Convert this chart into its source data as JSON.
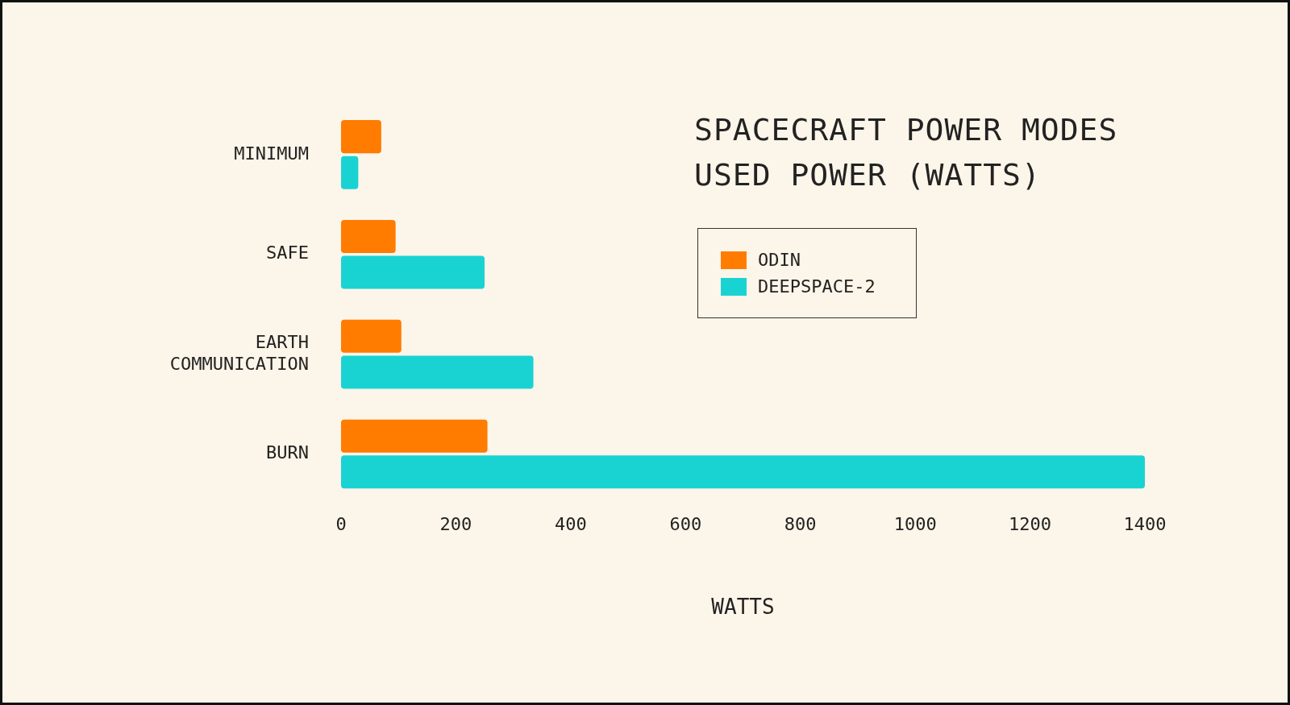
{
  "chart_data": {
    "type": "bar",
    "orientation": "horizontal",
    "title": "SPACECRAFT POWER MODES",
    "subtitle": "USED POWER (WATTS)",
    "xlabel": "WATTS",
    "categories": [
      "MINIMUM",
      "SAFE",
      "EARTH COMMUNICATION",
      "BURN"
    ],
    "series": [
      {
        "name": "ODIN",
        "color": "#ff7c00",
        "values": [
          70,
          95,
          105,
          255
        ]
      },
      {
        "name": "DEEPSPACE-2",
        "color": "#19d3d3",
        "values": [
          30,
          250,
          335,
          1400
        ]
      }
    ],
    "xlim": [
      0,
      1400
    ],
    "xticks": [
      0,
      200,
      400,
      600,
      800,
      1000,
      1200,
      1400
    ],
    "legend": "top right"
  }
}
